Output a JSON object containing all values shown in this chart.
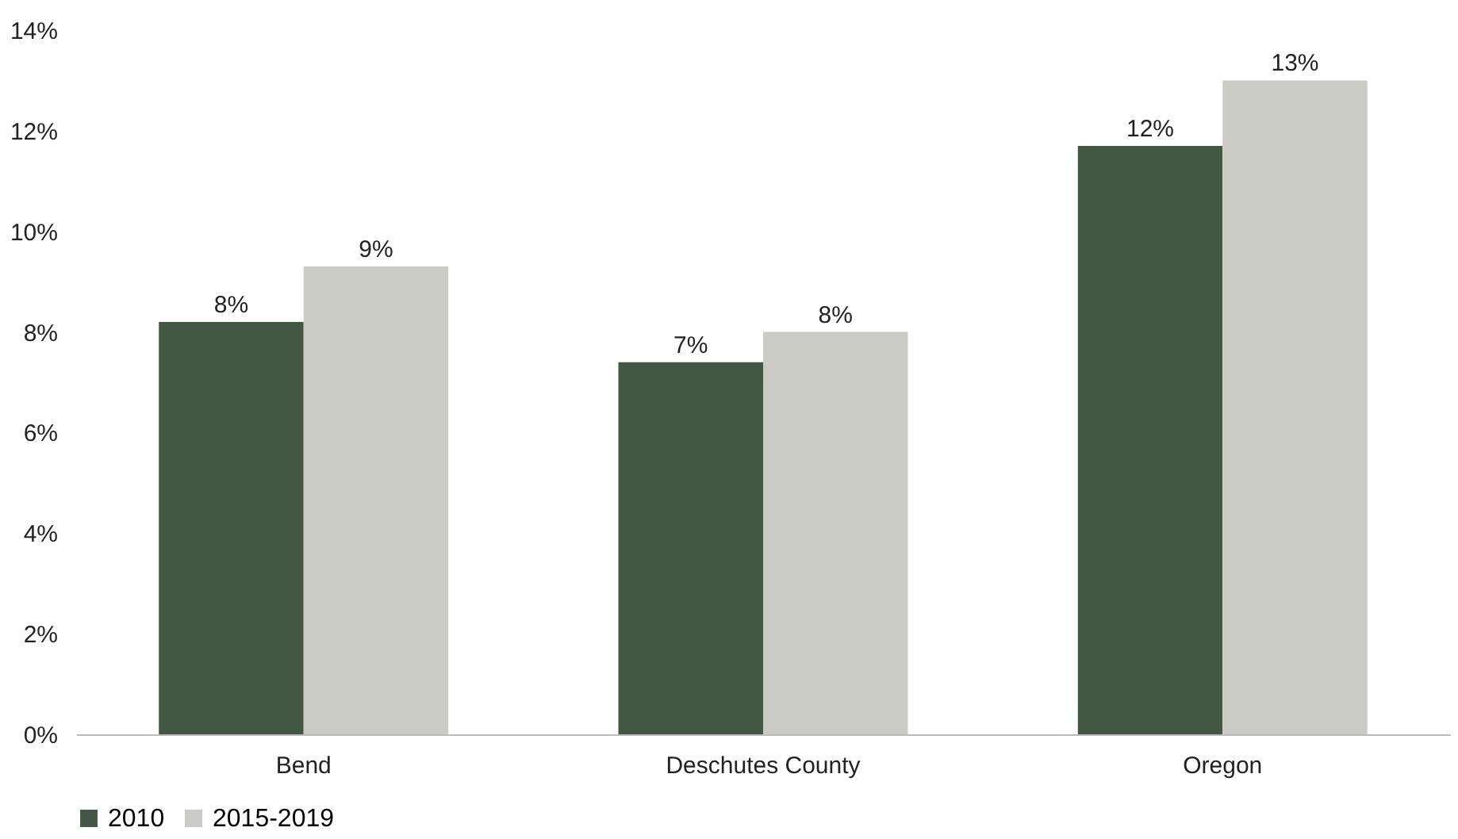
{
  "chart_data": {
    "type": "bar",
    "categories": [
      "Bend",
      "Deschutes County",
      "Oregon"
    ],
    "series": [
      {
        "name": "2010",
        "color": "#435843",
        "values": [
          8.2,
          7.4,
          11.7
        ],
        "value_labels": [
          "8%",
          "7%",
          "12%"
        ]
      },
      {
        "name": "2015-2019",
        "color": "#c9cbc4",
        "values": [
          9.3,
          8.0,
          13.0
        ],
        "value_labels": [
          "9%",
          "8%",
          "13%"
        ]
      }
    ],
    "ylim": [
      0,
      14
    ],
    "yticks": [
      {
        "value": 0,
        "label": "0%"
      },
      {
        "value": 2,
        "label": "2%"
      },
      {
        "value": 4,
        "label": "4%"
      },
      {
        "value": 6,
        "label": "6%"
      },
      {
        "value": 8,
        "label": "8%"
      },
      {
        "value": 10,
        "label": "10%"
      },
      {
        "value": 12,
        "label": "12%"
      },
      {
        "value": 14,
        "label": "14%"
      }
    ],
    "legend": "bottom",
    "grid": false
  }
}
